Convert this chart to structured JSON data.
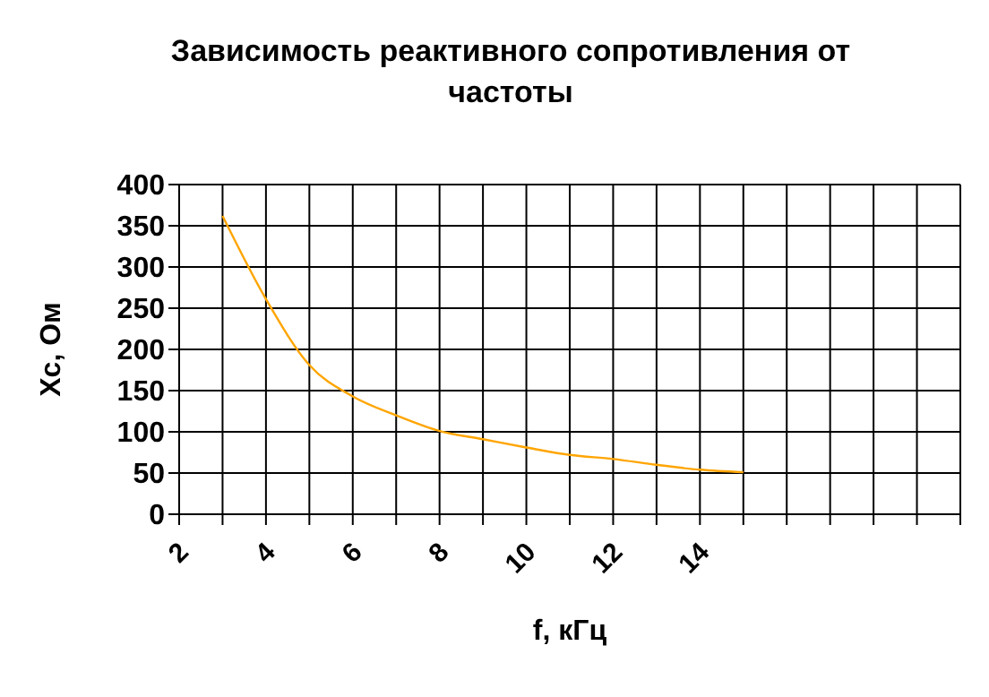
{
  "chart_data": {
    "type": "line",
    "title": "Зависимость реактивного сопротивления от частоты",
    "xlabel": "f, кГц",
    "ylabel": "Xc, Ом",
    "x": [
      3,
      4,
      5,
      6,
      7,
      8,
      9,
      10,
      11,
      12,
      13,
      14,
      15
    ],
    "series": [
      {
        "color": "#ffa500",
        "values": [
          362,
          261,
          181,
          143,
          120,
          101,
          91,
          81,
          72,
          67,
          60,
          54,
          51
        ]
      }
    ],
    "xlim": [
      2,
      20
    ],
    "xticks": [
      2,
      {
        "value": 3,
        "label": null
      },
      4,
      {
        "value": 5,
        "label": null
      },
      6,
      {
        "value": 7,
        "label": null
      },
      8,
      {
        "value": 9,
        "label": null
      },
      10,
      {
        "value": 11,
        "label": null
      },
      12,
      {
        "value": 13,
        "label": null
      },
      14,
      {
        "value": 15,
        "label": null
      },
      {
        "value": 16,
        "label": null
      },
      {
        "value": 17,
        "label": null
      },
      {
        "value": 18,
        "label": null
      },
      {
        "value": 19,
        "label": null
      },
      {
        "value": 20,
        "label": null
      }
    ],
    "ylim": [
      0,
      400
    ],
    "yticks": [
      0,
      50,
      100,
      150,
      200,
      250,
      300,
      350,
      400
    ],
    "grid": true,
    "marker": "none",
    "line_style": "solid",
    "legend": false
  }
}
